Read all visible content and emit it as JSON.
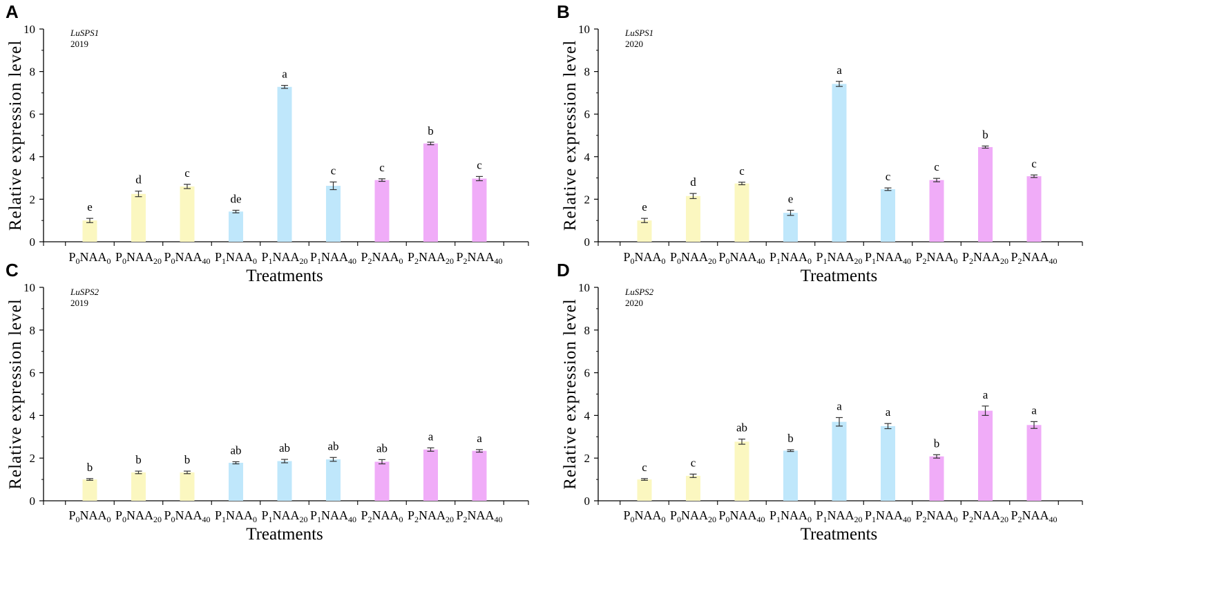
{
  "chart_data": [
    {
      "panel": "A",
      "type": "bar",
      "gene": "LuSPS1",
      "year": "2019",
      "xlabel": "Treatments",
      "ylabel": "Relative  expression  level",
      "ylim": [
        0,
        10
      ],
      "yticks": [
        "0",
        "2",
        "4",
        "6",
        "8",
        "10"
      ],
      "categories": [
        {
          "p": "P",
          "ps": "0",
          "n": "NAA",
          "ns": "0"
        },
        {
          "p": "P",
          "ps": "0",
          "n": "NAA",
          "ns": "20"
        },
        {
          "p": "P",
          "ps": "0",
          "n": "NAA",
          "ns": "40"
        },
        {
          "p": "P",
          "ps": "1",
          "n": "NAA",
          "ns": "0"
        },
        {
          "p": "P",
          "ps": "1",
          "n": "NAA",
          "ns": "20"
        },
        {
          "p": "P",
          "ps": "1",
          "n": "NAA",
          "ns": "40"
        },
        {
          "p": "P",
          "ps": "2",
          "n": "NAA",
          "ns": "0"
        },
        {
          "p": "P",
          "ps": "2",
          "n": "NAA",
          "ns": "20"
        },
        {
          "p": "P",
          "ps": "2",
          "n": "NAA",
          "ns": "40"
        }
      ],
      "values": [
        1.0,
        2.25,
        2.6,
        1.42,
        7.28,
        2.63,
        2.9,
        4.62,
        2.97
      ],
      "errors": [
        0.1,
        0.13,
        0.1,
        0.06,
        0.07,
        0.18,
        0.06,
        0.06,
        0.1
      ],
      "letters": [
        "e",
        "d",
        "c",
        "de",
        "a",
        "c",
        "c",
        "b",
        "c"
      ]
    },
    {
      "panel": "B",
      "type": "bar",
      "gene": "LuSPS1",
      "year": "2020",
      "xlabel": "Treatments",
      "ylabel": "Relative  expression  level",
      "ylim": [
        0,
        10
      ],
      "yticks": [
        "0",
        "2",
        "4",
        "6",
        "8",
        "10"
      ],
      "categories": [
        {
          "p": "P",
          "ps": "0",
          "n": "NAA",
          "ns": "0"
        },
        {
          "p": "P",
          "ps": "0",
          "n": "NAA",
          "ns": "20"
        },
        {
          "p": "P",
          "ps": "0",
          "n": "NAA",
          "ns": "40"
        },
        {
          "p": "P",
          "ps": "1",
          "n": "NAA",
          "ns": "0"
        },
        {
          "p": "P",
          "ps": "1",
          "n": "NAA",
          "ns": "20"
        },
        {
          "p": "P",
          "ps": "1",
          "n": "NAA",
          "ns": "40"
        },
        {
          "p": "P",
          "ps": "2",
          "n": "NAA",
          "ns": "0"
        },
        {
          "p": "P",
          "ps": "2",
          "n": "NAA",
          "ns": "20"
        },
        {
          "p": "P",
          "ps": "2",
          "n": "NAA",
          "ns": "40"
        }
      ],
      "values": [
        1.0,
        2.15,
        2.74,
        1.36,
        7.42,
        2.47,
        2.9,
        4.45,
        3.08
      ],
      "errors": [
        0.1,
        0.12,
        0.06,
        0.12,
        0.12,
        0.06,
        0.08,
        0.05,
        0.06
      ],
      "letters": [
        "e",
        "d",
        "c",
        "e",
        "a",
        "c",
        "c",
        "b",
        "c"
      ]
    },
    {
      "panel": "C",
      "type": "bar",
      "gene": "LuSPS2",
      "year": "2019",
      "xlabel": "Treatments",
      "ylabel": "Relative  expression  level",
      "ylim": [
        0,
        10
      ],
      "yticks": [
        "0",
        "2",
        "4",
        "6",
        "8",
        "10"
      ],
      "categories": [
        {
          "p": "P",
          "ps": "0",
          "n": "NAA",
          "ns": "0"
        },
        {
          "p": "P",
          "ps": "0",
          "n": "NAA",
          "ns": "20"
        },
        {
          "p": "P",
          "ps": "0",
          "n": "NAA",
          "ns": "40"
        },
        {
          "p": "P",
          "ps": "1",
          "n": "NAA",
          "ns": "0"
        },
        {
          "p": "P",
          "ps": "1",
          "n": "NAA",
          "ns": "20"
        },
        {
          "p": "P",
          "ps": "1",
          "n": "NAA",
          "ns": "40"
        },
        {
          "p": "P",
          "ps": "2",
          "n": "NAA",
          "ns": "0"
        },
        {
          "p": "P",
          "ps": "2",
          "n": "NAA",
          "ns": "20"
        },
        {
          "p": "P",
          "ps": "2",
          "n": "NAA",
          "ns": "40"
        }
      ],
      "values": [
        1.0,
        1.33,
        1.33,
        1.78,
        1.86,
        1.94,
        1.83,
        2.4,
        2.34
      ],
      "errors": [
        0.04,
        0.06,
        0.06,
        0.05,
        0.08,
        0.09,
        0.1,
        0.08,
        0.06
      ],
      "letters": [
        "b",
        "b",
        "b",
        "ab",
        "ab",
        "ab",
        "ab",
        "a",
        "a"
      ]
    },
    {
      "panel": "D",
      "type": "bar",
      "gene": "LuSPS2",
      "year": "2020",
      "xlabel": "Treatments",
      "ylabel": "Relative  expression  level",
      "ylim": [
        0,
        10
      ],
      "yticks": [
        "0",
        "2",
        "4",
        "6",
        "8",
        "10"
      ],
      "categories": [
        {
          "p": "P",
          "ps": "0",
          "n": "NAA",
          "ns": "0"
        },
        {
          "p": "P",
          "ps": "0",
          "n": "NAA",
          "ns": "20"
        },
        {
          "p": "P",
          "ps": "0",
          "n": "NAA",
          "ns": "40"
        },
        {
          "p": "P",
          "ps": "1",
          "n": "NAA",
          "ns": "0"
        },
        {
          "p": "P",
          "ps": "1",
          "n": "NAA",
          "ns": "20"
        },
        {
          "p": "P",
          "ps": "1",
          "n": "NAA",
          "ns": "40"
        },
        {
          "p": "P",
          "ps": "2",
          "n": "NAA",
          "ns": "0"
        },
        {
          "p": "P",
          "ps": "2",
          "n": "NAA",
          "ns": "20"
        },
        {
          "p": "P",
          "ps": "2",
          "n": "NAA",
          "ns": "40"
        }
      ],
      "values": [
        1.0,
        1.17,
        2.77,
        2.35,
        3.7,
        3.5,
        2.08,
        4.22,
        3.55
      ],
      "errors": [
        0.04,
        0.08,
        0.12,
        0.04,
        0.2,
        0.12,
        0.08,
        0.22,
        0.16
      ],
      "letters": [
        "c",
        "c",
        "ab",
        "b",
        "a",
        "a",
        "b",
        "a",
        "a"
      ]
    }
  ],
  "colors": {
    "group_P0": "#fbf7c0",
    "group_P1": "#bfe7fb",
    "group_P2": "#f0acf8",
    "axis": "#000000",
    "errorbar": "#333333"
  }
}
